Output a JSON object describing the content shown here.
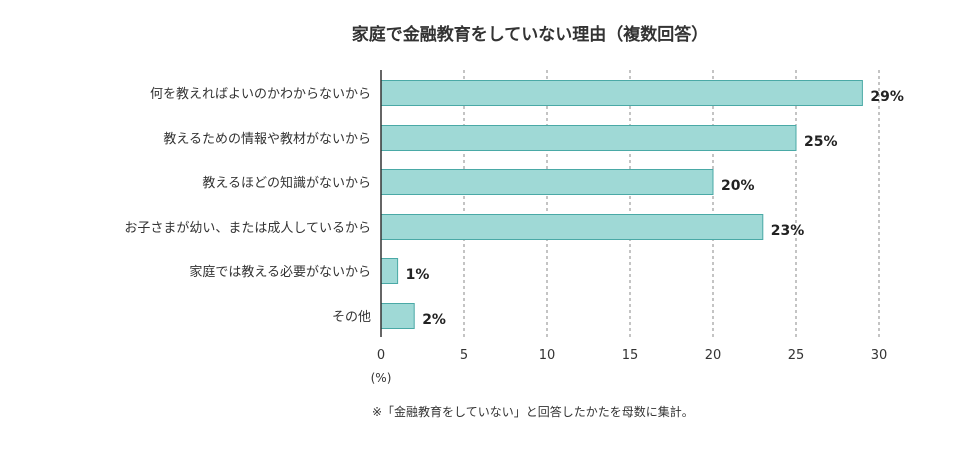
{
  "chart_data": {
    "type": "bar",
    "orientation": "horizontal",
    "title": "家庭で金融教育をしていない理由（複数回答）",
    "categories": [
      "何を教えればよいのかわからないから",
      "教えるための情報や教材がないから",
      "教えるほどの知識がないから",
      "お子さまが幼い、または成人しているから",
      "家庭では教える必要がないから",
      "その他"
    ],
    "values": [
      29,
      25,
      20,
      23,
      1,
      2
    ],
    "value_labels": [
      "29%",
      "25%",
      "20%",
      "23%",
      "1%",
      "2%"
    ],
    "xlim": [
      0,
      30
    ],
    "xticks": [
      "0",
      "5",
      "10",
      "15",
      "20",
      "25",
      "30"
    ],
    "xlabel": "(%)",
    "grid": true,
    "note": "※「金融教育をしていない」と回答したかたを母数に集計。",
    "colors": {
      "bar_fill": "#9fd9d6",
      "bar_stroke": "#4aa9a6",
      "grid": "#888888",
      "axis": "#333333"
    }
  }
}
